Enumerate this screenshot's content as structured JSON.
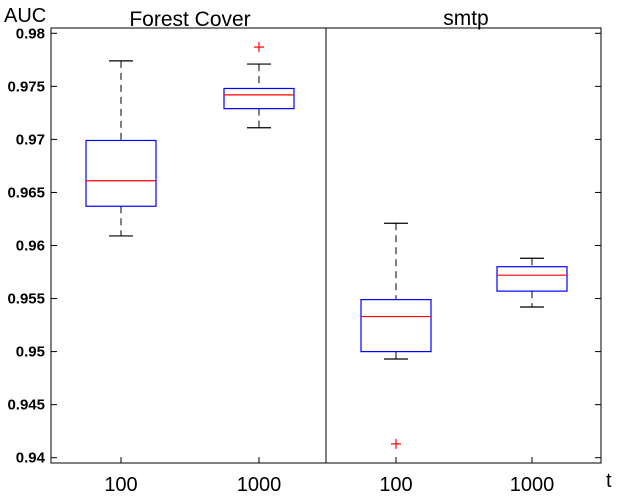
{
  "chart_data": {
    "type": "box",
    "ylabel": "AUC",
    "xlabel": "t",
    "ylim": [
      0.9395,
      0.9805
    ],
    "yticks": [
      0.94,
      0.945,
      0.95,
      0.955,
      0.96,
      0.965,
      0.97,
      0.975,
      0.98
    ],
    "ytick_labels": [
      "0.94",
      "0.945",
      "0.95",
      "0.955",
      "0.96",
      "0.965",
      "0.97",
      "0.975",
      "0.98"
    ],
    "grid": false,
    "colors": {
      "box": "#0000ff",
      "median": "#ff0000",
      "whisker": "#000000",
      "outlier": "#ff0000",
      "divider": "#000000"
    },
    "groups": [
      {
        "title": "Forest Cover",
        "boxes": [
          {
            "label": "100",
            "min": 0.9609,
            "q1": 0.9637,
            "median": 0.9661,
            "q3": 0.9699,
            "max": 0.9774,
            "outliers": []
          },
          {
            "label": "1000",
            "min": 0.9711,
            "q1": 0.9729,
            "median": 0.9742,
            "q3": 0.9748,
            "max": 0.9771,
            "outliers": [
              0.9787
            ]
          }
        ]
      },
      {
        "title": "smtp",
        "boxes": [
          {
            "label": "100",
            "min": 0.9493,
            "q1": 0.95,
            "median": 0.9533,
            "q3": 0.9549,
            "max": 0.9621,
            "outliers": [
              0.9413
            ]
          },
          {
            "label": "1000",
            "min": 0.9542,
            "q1": 0.9557,
            "median": 0.9572,
            "q3": 0.958,
            "max": 0.9588,
            "outliers": []
          }
        ]
      }
    ]
  }
}
